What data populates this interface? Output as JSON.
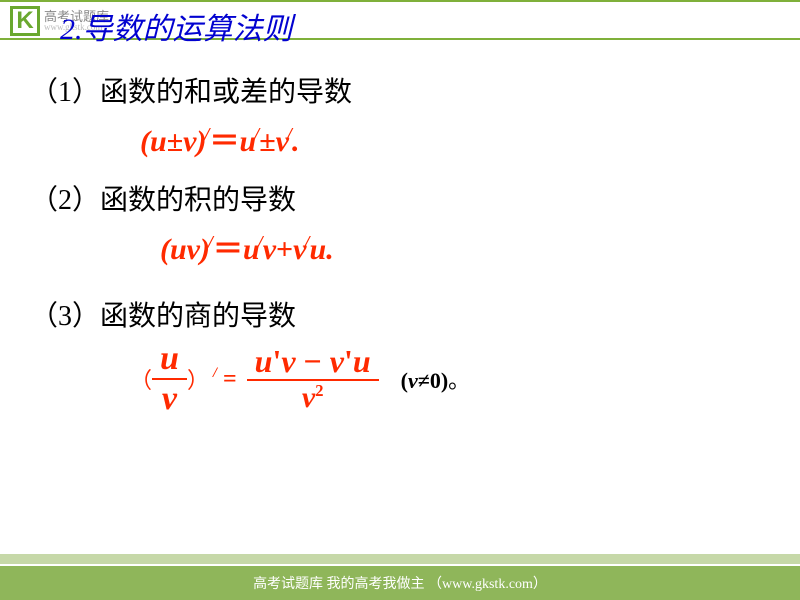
{
  "colors": {
    "accent_green": "#6aa82f",
    "title_blue": "#0202d0",
    "formula_red": "#ff2a00",
    "footer_bg": "#8fb65a",
    "footer_stripe": "#c6d8a8",
    "text_black": "#000000",
    "white": "#ffffff"
  },
  "typography": {
    "title_fontsize": 30,
    "heading_fontsize": 28,
    "formula_fontsize": 30,
    "footer_fontsize": 14,
    "cond_fontsize": 22,
    "body_font": "SimSun / KaiTi / Times New Roman"
  },
  "logo": {
    "letter": "K",
    "text": "高考试题库",
    "sub": "www.gkstk.com"
  },
  "title": "2.导数的运算法则",
  "rules": [
    {
      "heading": "（1）函数的和或差的导数",
      "formula_html": "(<i>u</i><span class='op'>±</span><i>v</i>)<sup>/</sup><span class='op'>＝</span><i>u</i><sup>/</sup><span class='op'>±</span><i>v</i><sup>/</sup>."
    },
    {
      "heading": "（2）函数的积的导数",
      "formula_html": "(<i>uv</i>)<sup>/</sup><span class='op'>＝</span><i>u</i><sup>/</sup><i>v</i><span class='op'>+</span><i>v</i><sup>/</sup><i>u</i>."
    },
    {
      "heading": "（3）函数的商的导数"
    }
  ],
  "quotient": {
    "lhs_num": "u",
    "lhs_den": "v",
    "lparen": "（",
    "rparen": "）",
    "prime_eq": "<sup>/</sup> <span style='font-style:normal'>=</span>",
    "rhs_num": "u<span class='apos'>'</span>v <span class='op' style='font-style:normal'>−</span> v<span class='apos'>'</span>u",
    "rhs_den": "v<sup>2</sup>",
    "condition": "(<span class='v'>v</span><span class='ne'>≠0</span>)<span style='font-family:SimSun;font-weight:normal'>。</span>"
  },
  "footer": "高考试题库 我的高考我做主 （www.gkstk.com）"
}
